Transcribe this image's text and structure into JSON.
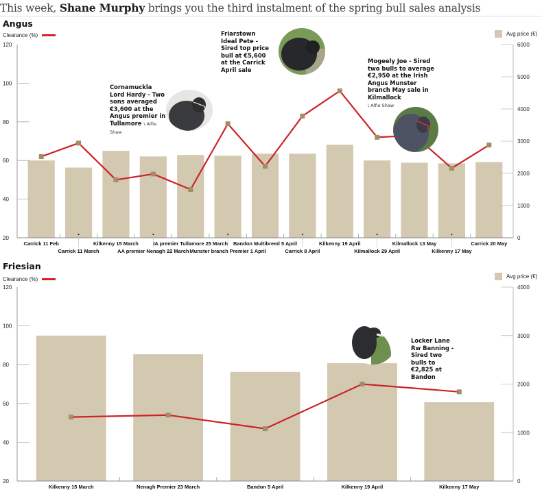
{
  "headline": {
    "prefix": "This week, ",
    "author": "Shane Murphy",
    "suffix": " brings you the third instalment of the spring bull sales analysis"
  },
  "legend": {
    "clearance_label": "Clearance (%)",
    "price_label": "Avg price (€)",
    "line_color": "#cc2229",
    "bar_color": "#d3c8b0",
    "marker_color": "#a08e64"
  },
  "annotations": {
    "cornamuckla": {
      "text": "Cornamuckla Lord Hardy - Two sons averaged €3,600 at the Angus premier in Tullamore",
      "credit": "\\ Alfie Shaw",
      "photo": "black-bull-photo"
    },
    "friarstown": {
      "text": "Friarstown Ideal Pete - Sired top price bull at €5,600 at the Carrick April sale",
      "photo": "black-bull-photo"
    },
    "mogeely": {
      "text": "Mogeely Joe - Sired two bulls to average €2,950 at the Irish Angus Munster branch May sale in Kilmallock",
      "credit": "\\ Alfie Shaw",
      "photo": "black-bull-halter-photo"
    },
    "locker_lane": {
      "text": "Locker Lane Rw Banning - Sired two bulls to €2,825 at Bandon",
      "photo": "friesian-bull-photo"
    }
  },
  "chart_data": [
    {
      "type": "bar",
      "title": "Angus",
      "categories": [
        "Carrick 11 Feb",
        "Carrick 11 March",
        "Kilkenny 15 March",
        "AA premier Nenagh 22 March",
        "IA premier Tullamore 25 March",
        "Munster branch Premier 1 April",
        "Bandon Multibreed 5 April",
        "Carrick 8 April",
        "Kilkenny 19 April",
        "Kilmallock 29 April",
        "Kilmallock 13 May",
        "Kilkenny 17 May",
        "Carrick 20 May"
      ],
      "series": [
        {
          "name": "Avg price (€)",
          "type": "bar",
          "axis": "right",
          "values": [
            2400,
            2180,
            2700,
            2525,
            2570,
            2550,
            2610,
            2610,
            2890,
            2400,
            2330,
            2310,
            2350
          ]
        },
        {
          "name": "Clearance (%)",
          "type": "line",
          "axis": "left",
          "values": [
            62,
            69,
            50,
            53,
            45,
            79,
            57,
            83,
            96,
            72,
            73,
            56,
            68
          ]
        }
      ],
      "left_axis": {
        "label": "Clearance (%)",
        "range": [
          20,
          120
        ],
        "ticks": [
          20,
          40,
          60,
          80,
          100,
          120
        ]
      },
      "right_axis": {
        "label": "Avg price (€)",
        "range": [
          0,
          6000
        ],
        "ticks": [
          0,
          1000,
          2000,
          3000,
          4000,
          5000,
          6000
        ]
      },
      "grid": false,
      "legend": "top"
    },
    {
      "type": "bar",
      "title": "Friesian",
      "categories": [
        "Kilkenny 15 March",
        "Nenagh Premier 23 March",
        "Bandon 5 April",
        "Kilkenny 19 April",
        "Kilkenny 17 May"
      ],
      "series": [
        {
          "name": "Avg price (€)",
          "type": "bar",
          "axis": "right",
          "values": [
            3000,
            2615,
            2250,
            2430,
            1625
          ]
        },
        {
          "name": "Clearance (%)",
          "type": "line",
          "axis": "left",
          "values": [
            53,
            54,
            47,
            70,
            66
          ]
        }
      ],
      "left_axis": {
        "label": "Clearance (%)",
        "range": [
          20,
          120
        ],
        "ticks": [
          20,
          40,
          60,
          80,
          100,
          120
        ]
      },
      "right_axis": {
        "label": "Avg price (€)",
        "range": [
          0,
          4000
        ],
        "ticks": [
          0,
          1000,
          2000,
          3000,
          4000
        ]
      },
      "grid": false,
      "legend": "top"
    }
  ]
}
